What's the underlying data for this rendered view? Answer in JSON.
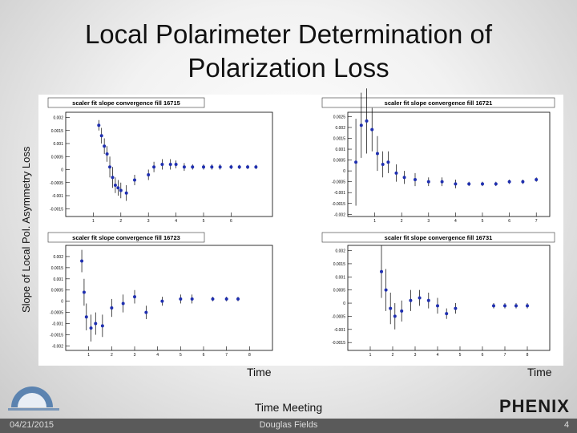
{
  "title": "Local Polarimeter Determination of Polarization Loss",
  "ylabel": "Slope of Local Pol. Asymmetry Loss",
  "xlabels": [
    "Time",
    "Time"
  ],
  "meeting": "Time Meeting",
  "footer": {
    "date": "04/21/2015",
    "author": "Douglas Fields",
    "page": 4
  },
  "logo": "PHENIX",
  "chart_data": [
    {
      "type": "scatter",
      "title": "scaler fit slope convergence fill 16715",
      "color": "#1f2fb0",
      "x": [
        1.2,
        1.3,
        1.4,
        1.5,
        1.6,
        1.7,
        1.8,
        1.9,
        2.0,
        2.2,
        2.5,
        3.0,
        3.2,
        3.5,
        3.8,
        4.0,
        4.3,
        4.6,
        5.0,
        5.3,
        5.6,
        6.0,
        6.3,
        6.6,
        6.9
      ],
      "values": [
        0.0017,
        0.0013,
        0.0009,
        0.0006,
        0.0001,
        -0.0003,
        -0.0006,
        -0.0007,
        -0.0008,
        -0.0009,
        -0.0004,
        -0.0002,
        0.0001,
        0.0002,
        0.0002,
        0.0002,
        0.0001,
        0.0001,
        0.0001,
        0.0001,
        0.0001,
        0.0001,
        0.0001,
        0.0001,
        0.0001
      ],
      "errors": [
        0.0002,
        0.0003,
        0.0003,
        0.0003,
        0.0004,
        0.0004,
        0.0003,
        0.0003,
        0.0003,
        0.0003,
        0.0002,
        0.0002,
        0.0002,
        0.0002,
        0.0002,
        0.00015,
        0.00015,
        0.0001,
        0.0001,
        0.0001,
        0.0001,
        8e-05,
        8e-05,
        8e-05,
        8e-05
      ],
      "xlim": [
        0,
        7.5
      ],
      "xticks": [
        1,
        2,
        3,
        4,
        5,
        6
      ],
      "ylim": [
        -0.0018,
        0.0022
      ],
      "yticks": [
        0.002,
        0.0015,
        0.001,
        0.0005,
        0,
        -0.0005,
        -0.001,
        -0.0015
      ]
    },
    {
      "type": "scatter",
      "title": "scaler fit slope convergence fill 16721",
      "color": "#1f2fb0",
      "x": [
        0.3,
        0.5,
        0.7,
        0.9,
        1.1,
        1.3,
        1.5,
        1.8,
        2.1,
        2.5,
        3.0,
        3.5,
        4.0,
        4.5,
        5.0,
        5.5,
        6.0,
        6.5,
        7.0
      ],
      "values": [
        0.0004,
        0.0021,
        0.0023,
        0.0019,
        0.0008,
        0.0003,
        0.0004,
        -0.0001,
        -0.0003,
        -0.0004,
        -0.0005,
        -0.0005,
        -0.0006,
        -0.0006,
        -0.0006,
        -0.0006,
        -0.0005,
        -0.0005,
        -0.0004
      ],
      "errors": [
        0.002,
        0.0015,
        0.0015,
        0.001,
        0.0008,
        0.0006,
        0.0005,
        0.0004,
        0.0003,
        0.0003,
        0.0002,
        0.0002,
        0.0002,
        0.0001,
        0.0001,
        0.0001,
        0.0001,
        0.0001,
        0.0001
      ],
      "xlim": [
        0,
        7.5
      ],
      "xticks": [
        1,
        2,
        3,
        4,
        5,
        6,
        7
      ],
      "ylim": [
        -0.0021,
        0.0027
      ],
      "yticks": [
        0.0025,
        0.002,
        0.0015,
        0.001,
        0.0005,
        0,
        -0.0005,
        -0.001,
        -0.0015,
        -0.002
      ]
    },
    {
      "type": "scatter",
      "title": "scaler fit slope convergence fill 16723",
      "color": "#1f2fb0",
      "x": [
        0.7,
        0.8,
        0.9,
        1.1,
        1.3,
        1.6,
        2.0,
        2.5,
        3.0,
        3.5,
        4.2,
        5.0,
        5.5,
        6.4,
        7.0,
        7.5
      ],
      "values": [
        0.0018,
        0.0004,
        -0.0007,
        -0.0012,
        -0.001,
        -0.0011,
        -0.0003,
        -0.0001,
        0.0002,
        -0.0005,
        0,
        0.0001,
        0.0001,
        0.0001,
        0.0001,
        0.0001
      ],
      "errors": [
        0.0005,
        0.0006,
        0.0006,
        0.0006,
        0.0005,
        0.0005,
        0.0004,
        0.0004,
        0.0003,
        0.0003,
        0.0002,
        0.0002,
        0.0002,
        0.0001,
        0.0001,
        0.0001
      ],
      "xlim": [
        0,
        9
      ],
      "xticks": [
        1,
        2,
        3,
        4,
        5,
        6,
        7,
        8
      ],
      "ylim": [
        -0.0022,
        0.0025
      ],
      "yticks": [
        0.002,
        0.0015,
        0.001,
        0.0005,
        0,
        -0.0005,
        -0.001,
        -0.0015,
        -0.002
      ]
    },
    {
      "type": "scatter",
      "title": "scaler fit slope convergence fill 16731",
      "color": "#1f2fb0",
      "x": [
        1.5,
        1.7,
        1.9,
        2.1,
        2.4,
        2.8,
        3.2,
        3.6,
        4.0,
        4.4,
        4.8,
        6.5,
        7.0,
        7.5,
        8.0
      ],
      "values": [
        0.0012,
        0.0005,
        -0.0002,
        -0.0005,
        -0.0003,
        0.0001,
        0.0002,
        0.0001,
        -0.0001,
        -0.0004,
        -0.0002,
        -0.0001,
        -0.0001,
        -0.0001,
        -0.0001
      ],
      "errors": [
        0.001,
        0.0008,
        0.0006,
        0.0005,
        0.0004,
        0.0004,
        0.0003,
        0.0003,
        0.0003,
        0.0002,
        0.0002,
        0.0001,
        0.0001,
        0.0001,
        0.0001
      ],
      "xlim": [
        0,
        9
      ],
      "xticks": [
        1,
        2,
        3,
        4,
        5,
        6,
        7,
        8
      ],
      "ylim": [
        -0.0018,
        0.0022
      ],
      "yticks": [
        0.002,
        0.0015,
        0.001,
        0.0005,
        0,
        -0.0005,
        -0.001,
        -0.0015
      ]
    }
  ]
}
